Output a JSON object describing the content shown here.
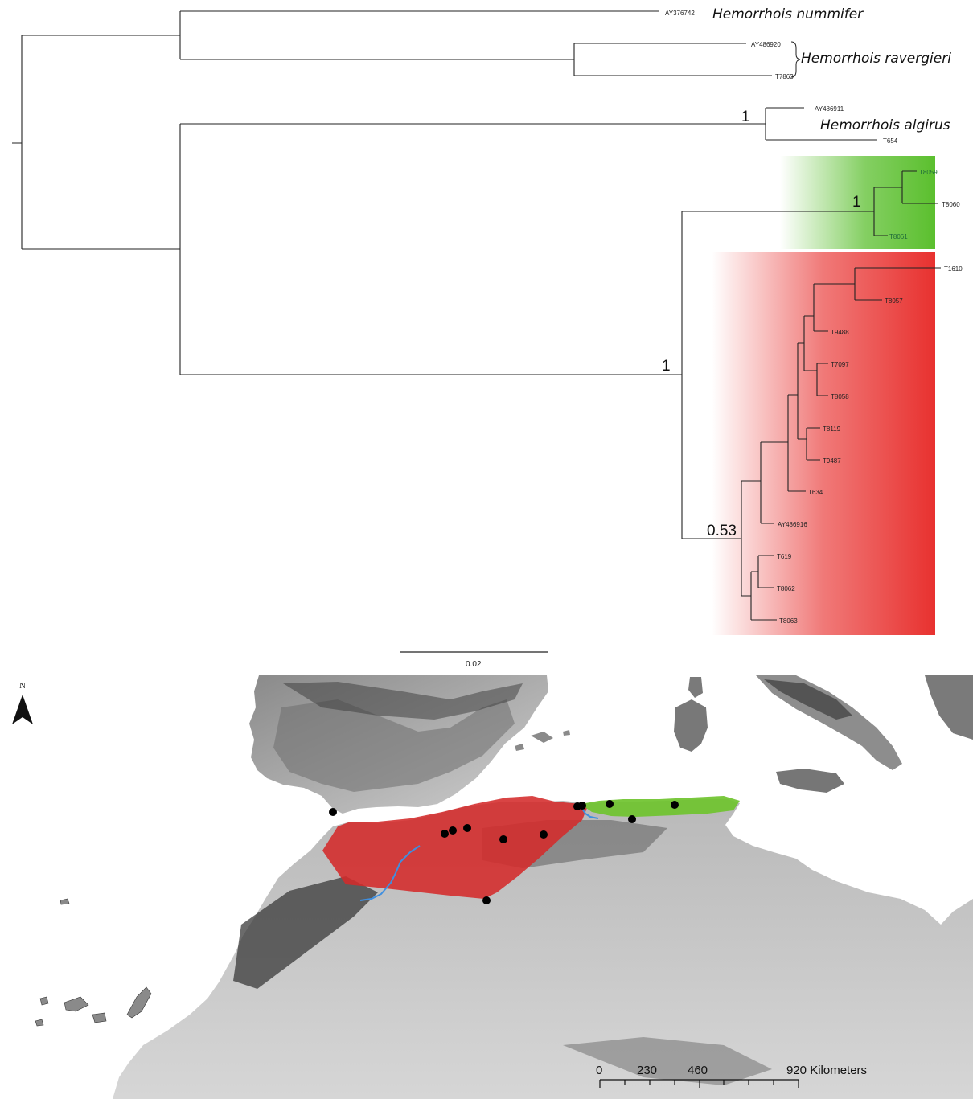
{
  "tree": {
    "tips": {
      "AY376742": "AY376742",
      "AY486920": "AY486920",
      "T7863": "T7863",
      "AY486911": "AY486911",
      "T654": "T654",
      "T8059": "T8059",
      "T8060": "T8060",
      "T8061": "T8061",
      "T1610": "T1610",
      "T8057": "T8057",
      "T9488": "T9488",
      "T7097": "T7097",
      "T8058": "T8058",
      "T8119": "T8119",
      "T9487": "T9487",
      "T634": "T634",
      "AY486916": "AY486916",
      "T619": "T619",
      "T8062": "T8062",
      "T8063": "T8063"
    },
    "species": {
      "nummifer": "Hemorrhois nummifer",
      "ravergieri": "Hemorrhois ravergieri",
      "algirus": "Hemorrhois algirus"
    },
    "support": {
      "algirus": "1",
      "green_clade": "1",
      "ingroup": "1",
      "red_clade": "0.53"
    },
    "scale_bar": "0.02",
    "colors": {
      "green_clade": "#5bbf2e",
      "red_clade": "#e8312f"
    }
  },
  "map": {
    "north_label": "N",
    "scale": [
      "0",
      "230",
      "460",
      "920 Kilometers"
    ],
    "colors": {
      "red_range": "#d42a2a",
      "green_range": "#6fc32e",
      "river": "#3f8fe0",
      "points": "#000000"
    }
  }
}
